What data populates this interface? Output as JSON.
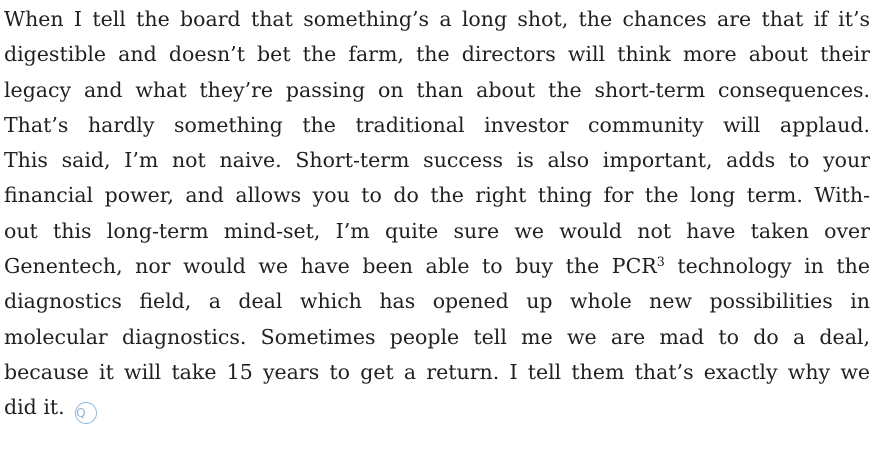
{
  "paragraph": {
    "lines": [
      {
        "text": "When I tell the board that something’s a long shot, the chances are that if it’s"
      },
      {
        "text": "digestible and doesn’t bet the farm, the directors will think more about their"
      },
      {
        "text": "legacy and what they’re passing on than about the short-term consequences."
      },
      {
        "text": "That’s hardly something the traditional investor community will applaud."
      },
      {
        "text": "This said, I’m not naive. Short-term success is also important, adds to your"
      },
      {
        "text": "financial power, and allows you to do the right thing for the long term. With-"
      },
      {
        "text": "out this long-term mind-set, I’m quite sure we would not have taken over"
      },
      {
        "text": "Genentech, nor would we have been able to buy the PCR",
        "sup": "3",
        "after": " technology in the"
      },
      {
        "text": "diagnostics field, a deal which has opened up whole new possibilities in"
      },
      {
        "text": "molecular diagnostics. Sometimes people tell me we are mad to do a deal,"
      },
      {
        "text": "because it will take 15 years to get a return. I tell them that’s exactly why we"
      },
      {
        "text": "did it.",
        "icon": "Q"
      }
    ]
  }
}
